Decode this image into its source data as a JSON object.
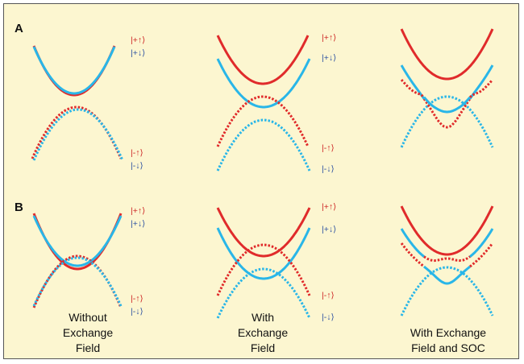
{
  "colors": {
    "background": "#fcf6d0",
    "spin_up": "#e02b2b",
    "spin_down": "#29b6e8",
    "ket_up_text": "#cc2222",
    "ket_down_text": "#2a4fa0"
  },
  "rows": [
    {
      "label": "A"
    },
    {
      "label": "B"
    }
  ],
  "kets": {
    "plus_up": "|+↑⟩",
    "plus_down": "|+↓⟩",
    "minus_up": "|-↑⟩",
    "minus_down": "|-↓⟩"
  },
  "columns": [
    {
      "caption": [
        "Without",
        "Exchange",
        "Field"
      ]
    },
    {
      "caption": [
        "With",
        "Exchange",
        "Field"
      ]
    },
    {
      "caption": [
        "With Exchange",
        "Field and SOC"
      ]
    }
  ]
}
